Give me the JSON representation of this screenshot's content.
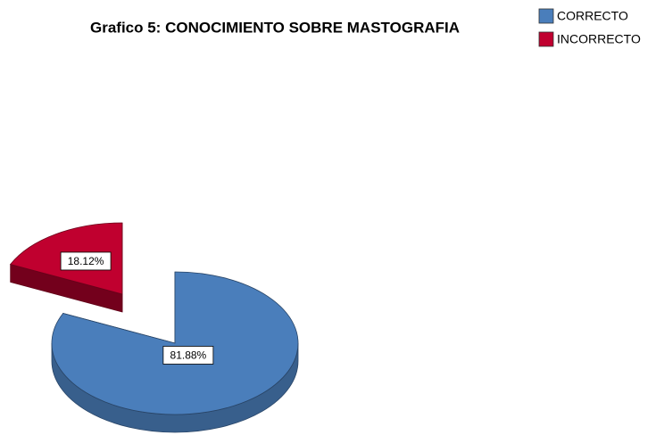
{
  "chart_data": {
    "type": "pie",
    "title": "Grafico 5: CONOCIMIENTO SOBRE MASTOGRAFIA",
    "categories": [
      "CORRECTO",
      "INCORRECTO"
    ],
    "values": [
      81.88,
      18.12
    ],
    "value_labels": [
      "81.88%",
      "18.12%"
    ],
    "colors": [
      "#4a7ebb",
      "#c0002f"
    ],
    "exploded": [
      false,
      true
    ],
    "legend": "top-right"
  }
}
